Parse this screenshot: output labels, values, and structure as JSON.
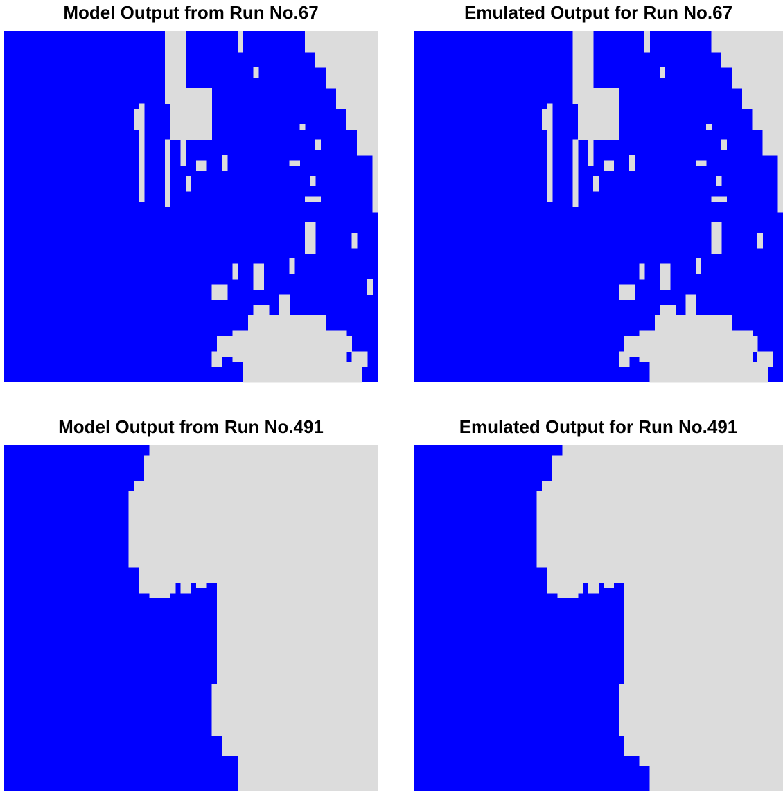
{
  "chart_data": [
    {
      "type": "raster",
      "title": "Model Output from Run No.67",
      "ncols": 72,
      "nrows": 68,
      "background": "#0000ff",
      "color": "#dcdcdc",
      "patches": [
        [
          58,
          0,
          14,
          4
        ],
        [
          60,
          3,
          12,
          4
        ],
        [
          62,
          7,
          10,
          4
        ],
        [
          64,
          11,
          8,
          4
        ],
        [
          66,
          15,
          6,
          4
        ],
        [
          68,
          19,
          4,
          5
        ],
        [
          71,
          24,
          1,
          11
        ],
        [
          31,
          0,
          4,
          14
        ],
        [
          32,
          11,
          8,
          10
        ],
        [
          45,
          0,
          1,
          4
        ],
        [
          26,
          14,
          1,
          19
        ],
        [
          25,
          15,
          1,
          4
        ],
        [
          31,
          21,
          1,
          13
        ],
        [
          34,
          21,
          1,
          5
        ],
        [
          35,
          28,
          1,
          3
        ],
        [
          37,
          25,
          2,
          2
        ],
        [
          42,
          24,
          1,
          3
        ],
        [
          55,
          25,
          2,
          1
        ],
        [
          60,
          21,
          1,
          2
        ],
        [
          57,
          18,
          1,
          1
        ],
        [
          48,
          7,
          1,
          2
        ],
        [
          59,
          28,
          1,
          2
        ],
        [
          58,
          32,
          3,
          1
        ],
        [
          58,
          37,
          2,
          6
        ],
        [
          67,
          39,
          1,
          3
        ],
        [
          70,
          48,
          1,
          3
        ],
        [
          46,
          64,
          23,
          4
        ],
        [
          44,
          58,
          22,
          6
        ],
        [
          47,
          55,
          15,
          3
        ],
        [
          48,
          53,
          3,
          2
        ],
        [
          41,
          59,
          3,
          4
        ],
        [
          40,
          62,
          2,
          3
        ],
        [
          53,
          51,
          2,
          9
        ],
        [
          48,
          45,
          2,
          5
        ],
        [
          44,
          45,
          1,
          3
        ],
        [
          40,
          49,
          3,
          3
        ],
        [
          55,
          44,
          1,
          3
        ],
        [
          62,
          59,
          5,
          3
        ],
        [
          67,
          62,
          3,
          3
        ]
      ]
    },
    {
      "type": "raster",
      "title": "Emulated Output for Run No.67",
      "ncols": 72,
      "nrows": 68,
      "background": "#0000ff",
      "color": "#dcdcdc",
      "patches": [
        [
          58,
          0,
          14,
          4
        ],
        [
          60,
          3,
          12,
          4
        ],
        [
          62,
          7,
          10,
          4
        ],
        [
          64,
          11,
          8,
          4
        ],
        [
          66,
          15,
          6,
          4
        ],
        [
          68,
          19,
          4,
          5
        ],
        [
          71,
          24,
          1,
          11
        ],
        [
          31,
          0,
          4,
          14
        ],
        [
          32,
          11,
          8,
          10
        ],
        [
          45,
          0,
          1,
          4
        ],
        [
          26,
          14,
          1,
          19
        ],
        [
          25,
          15,
          1,
          4
        ],
        [
          31,
          21,
          1,
          13
        ],
        [
          34,
          21,
          1,
          5
        ],
        [
          35,
          28,
          1,
          3
        ],
        [
          37,
          25,
          2,
          2
        ],
        [
          42,
          24,
          1,
          3
        ],
        [
          55,
          25,
          2,
          1
        ],
        [
          60,
          21,
          1,
          2
        ],
        [
          57,
          18,
          1,
          1
        ],
        [
          48,
          7,
          1,
          2
        ],
        [
          59,
          28,
          1,
          2
        ],
        [
          58,
          32,
          3,
          1
        ],
        [
          58,
          37,
          2,
          6
        ],
        [
          67,
          39,
          1,
          3
        ],
        [
          46,
          64,
          23,
          4
        ],
        [
          44,
          58,
          22,
          6
        ],
        [
          47,
          55,
          15,
          3
        ],
        [
          48,
          53,
          3,
          2
        ],
        [
          41,
          59,
          3,
          4
        ],
        [
          40,
          62,
          2,
          3
        ],
        [
          53,
          51,
          2,
          9
        ],
        [
          48,
          45,
          2,
          5
        ],
        [
          44,
          45,
          1,
          3
        ],
        [
          40,
          49,
          3,
          3
        ],
        [
          55,
          44,
          1,
          3
        ],
        [
          62,
          59,
          5,
          3
        ],
        [
          67,
          62,
          3,
          3
        ]
      ]
    },
    {
      "type": "raster",
      "title": "Model Output from Run No.491",
      "ncols": 72,
      "nrows": 68,
      "background": "#0000ff",
      "color": "#dcdcdc",
      "patches": [
        [
          28,
          0,
          44,
          2
        ],
        [
          27,
          2,
          45,
          5
        ],
        [
          25,
          7,
          47,
          2
        ],
        [
          24,
          9,
          48,
          15
        ],
        [
          26,
          24,
          15,
          3
        ],
        [
          26,
          27,
          7,
          2
        ],
        [
          34,
          27,
          2,
          2
        ],
        [
          37,
          27,
          2,
          1
        ],
        [
          28,
          29,
          4,
          1
        ],
        [
          41,
          24,
          31,
          23
        ],
        [
          40,
          47,
          32,
          10
        ],
        [
          42,
          57,
          30,
          4
        ],
        [
          45,
          61,
          27,
          7
        ]
      ]
    },
    {
      "type": "raster",
      "title": "Emulated Output for Run No.491",
      "ncols": 72,
      "nrows": 68,
      "background": "#0000ff",
      "color": "#dcdcdc",
      "patches": [
        [
          29,
          0,
          43,
          2
        ],
        [
          27,
          2,
          45,
          5
        ],
        [
          25,
          7,
          47,
          2
        ],
        [
          24,
          9,
          48,
          15
        ],
        [
          26,
          24,
          15,
          3
        ],
        [
          26,
          27,
          7,
          2
        ],
        [
          34,
          27,
          2,
          2
        ],
        [
          37,
          27,
          2,
          1
        ],
        [
          28,
          29,
          4,
          1
        ],
        [
          41,
          24,
          31,
          23
        ],
        [
          40,
          47,
          32,
          10
        ],
        [
          41,
          57,
          31,
          4
        ],
        [
          44,
          61,
          28,
          2
        ],
        [
          46,
          63,
          26,
          5
        ]
      ]
    }
  ]
}
